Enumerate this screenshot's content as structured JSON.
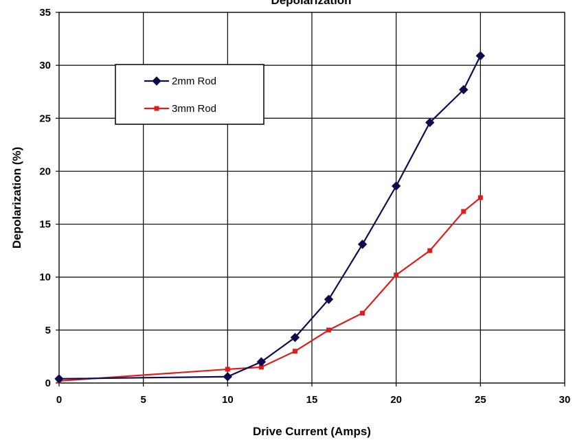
{
  "chart_data": {
    "type": "line",
    "title": "Depolarization",
    "xlabel": "Drive Current (Amps)",
    "ylabel": "Depolarization (%)",
    "xlim": [
      0,
      30
    ],
    "ylim": [
      0,
      35
    ],
    "xticks": [
      0,
      5,
      10,
      15,
      20,
      25,
      30
    ],
    "yticks": [
      0,
      5,
      10,
      15,
      20,
      25,
      30,
      35
    ],
    "grid": true,
    "legend_position": "top-left",
    "series": [
      {
        "name": "2mm Rod",
        "color": "#0d0d4d",
        "marker": "diamond",
        "x": [
          0,
          10,
          12,
          14,
          16,
          18,
          20,
          22,
          24,
          25
        ],
        "y": [
          0.4,
          0.6,
          2.0,
          4.3,
          7.9,
          13.1,
          18.6,
          24.6,
          27.7,
          30.9
        ]
      },
      {
        "name": "3mm Rod",
        "color": "#e01b1b",
        "marker": "square",
        "x": [
          0,
          10,
          12,
          14,
          16,
          18,
          20,
          22,
          24,
          25
        ],
        "y": [
          0.2,
          1.3,
          1.5,
          3.0,
          5.0,
          6.6,
          10.2,
          12.5,
          16.2,
          17.5
        ]
      }
    ]
  }
}
